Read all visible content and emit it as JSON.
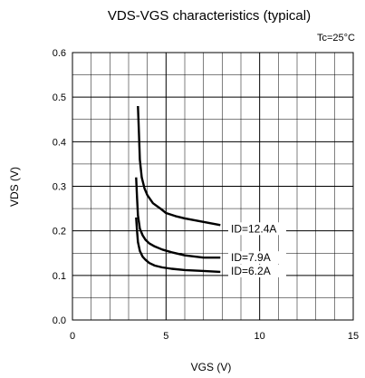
{
  "chart_data": {
    "type": "line",
    "title": "VDS-VGS characteristics (typical)",
    "condition": "Tc=25°C",
    "xlabel": "VGS (V)",
    "ylabel": "VDS (V)",
    "xlim": [
      0,
      15
    ],
    "ylim": [
      0,
      0.6
    ],
    "x_ticks": [
      0,
      5,
      10,
      15
    ],
    "x_tick_labels": [
      "0",
      "5",
      "10",
      "15"
    ],
    "y_ticks": [
      0.0,
      0.1,
      0.2,
      0.3,
      0.4,
      0.5,
      0.6
    ],
    "y_tick_labels": [
      "0.0",
      "0.1",
      "0.2",
      "0.3",
      "0.4",
      "0.5",
      "0.6"
    ],
    "grid": true,
    "x_minor_step": 1,
    "y_minor_step": 0.05,
    "series": [
      {
        "name": "ID=12.4A",
        "x": [
          3.5,
          3.55,
          3.6,
          3.7,
          3.85,
          4.0,
          4.3,
          4.7,
          5.0,
          5.5,
          6.0,
          7.0,
          7.9
        ],
        "y": [
          0.48,
          0.42,
          0.36,
          0.32,
          0.295,
          0.28,
          0.262,
          0.25,
          0.24,
          0.233,
          0.228,
          0.22,
          0.213
        ]
      },
      {
        "name": "ID=7.9A",
        "x": [
          3.4,
          3.45,
          3.5,
          3.6,
          3.75,
          3.9,
          4.1,
          4.4,
          4.8,
          5.3,
          6.0,
          7.0,
          7.9
        ],
        "y": [
          0.32,
          0.275,
          0.235,
          0.205,
          0.19,
          0.18,
          0.172,
          0.165,
          0.158,
          0.152,
          0.145,
          0.14,
          0.14
        ]
      },
      {
        "name": "ID=6.2A",
        "x": [
          3.4,
          3.45,
          3.5,
          3.6,
          3.75,
          3.9,
          4.1,
          4.4,
          4.8,
          5.3,
          6.0,
          7.0,
          7.9
        ],
        "y": [
          0.23,
          0.2,
          0.175,
          0.155,
          0.142,
          0.135,
          0.128,
          0.122,
          0.118,
          0.115,
          0.112,
          0.11,
          0.108
        ]
      }
    ],
    "annotations": [
      "ID=12.4A",
      "ID=7.9A",
      "ID=6.2A"
    ]
  }
}
